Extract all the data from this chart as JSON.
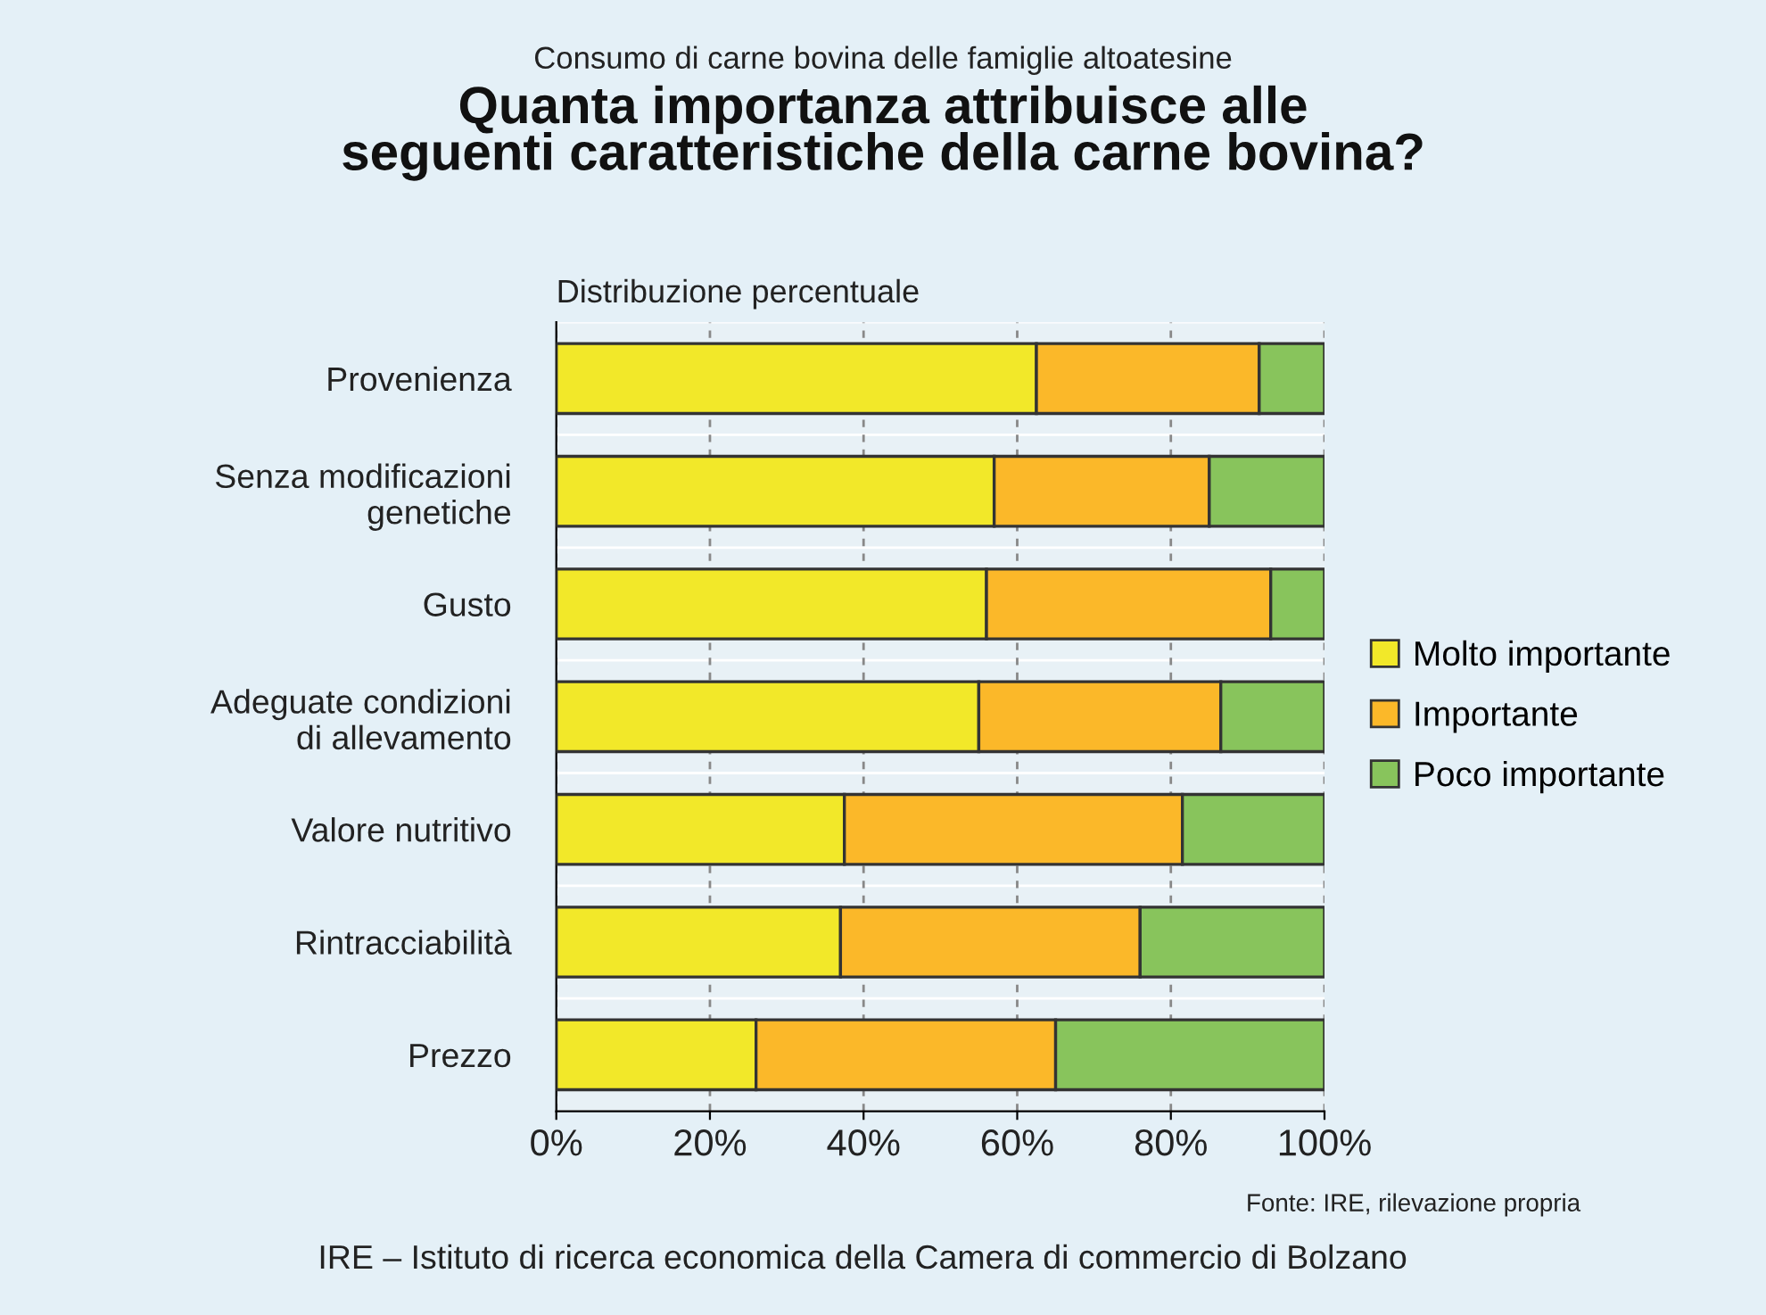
{
  "chart_data": {
    "type": "bar",
    "orientation": "horizontal",
    "stacked": true,
    "subtitle": "Consumo di carne bovina delle famiglie altoatesine",
    "title": "Quanta importanza attribuisce alle\nseguenti caratteristiche della carne bovina?",
    "categories": [
      "Provenienza",
      "Senza modificazioni\ngenetiche",
      "Gusto",
      "Adeguate condizioni\ndi allevamento",
      "Valore nutritivo",
      "Rintracciabilità",
      "Prezzo"
    ],
    "series": [
      {
        "name": "Molto importante",
        "color": "#f2e829",
        "values": [
          62.5,
          57,
          56,
          55,
          37.5,
          37,
          26
        ]
      },
      {
        "name": "Importante",
        "color": "#fbb829",
        "values": [
          29,
          28,
          37,
          31.5,
          44,
          39,
          39
        ]
      },
      {
        "name": "Poco importante",
        "color": "#88c45c",
        "values": [
          8.5,
          15,
          7,
          13.5,
          18.5,
          24,
          35
        ]
      }
    ],
    "xlim": [
      0,
      100
    ],
    "xticks": [
      {
        "value": 0,
        "label": "0%"
      },
      {
        "value": 20,
        "label": "20%"
      },
      {
        "value": 40,
        "label": "40%"
      },
      {
        "value": 60,
        "label": "60%"
      },
      {
        "value": 80,
        "label": "80%"
      },
      {
        "value": 100,
        "label": "100%"
      }
    ],
    "grid": "x",
    "legend": "right",
    "annotations": [
      "Distribuzione percentuale",
      "Fonte: IRE, rilevazione propria",
      "IRE – Istituto di ricerca economica della Camera di commercio di Bolzano"
    ]
  }
}
